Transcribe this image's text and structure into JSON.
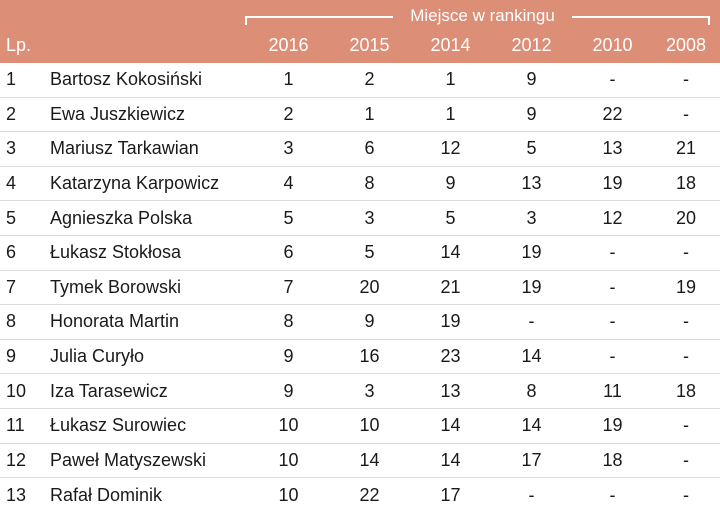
{
  "header": {
    "group_label": "Miejsce w rankingu",
    "lp_label": "Lp.",
    "years": [
      "2016",
      "2015",
      "2014",
      "2012",
      "2010",
      "2008"
    ]
  },
  "rows": [
    {
      "lp": "1",
      "name": "Bartosz Kokosiński",
      "v": [
        "1",
        "2",
        "1",
        "9",
        "-",
        "-"
      ]
    },
    {
      "lp": "2",
      "name": "Ewa Juszkiewicz",
      "v": [
        "2",
        "1",
        "1",
        "9",
        "22",
        "-"
      ]
    },
    {
      "lp": "3",
      "name": "Mariusz Tarkawian",
      "v": [
        "3",
        "6",
        "12",
        "5",
        "13",
        "21"
      ]
    },
    {
      "lp": "4",
      "name": "Katarzyna Karpowicz",
      "v": [
        "4",
        "8",
        "9",
        "13",
        "19",
        "18"
      ]
    },
    {
      "lp": "5",
      "name": "Agnieszka Polska",
      "v": [
        "5",
        "3",
        "5",
        "3",
        "12",
        "20"
      ]
    },
    {
      "lp": "6",
      "name": "Łukasz Stokłosa",
      "v": [
        "6",
        "5",
        "14",
        "19",
        "-",
        "-"
      ]
    },
    {
      "lp": "7",
      "name": "Tymek Borowski",
      "v": [
        "7",
        "20",
        "21",
        "19",
        "-",
        "19"
      ]
    },
    {
      "lp": "8",
      "name": "Honorata Martin",
      "v": [
        "8",
        "9",
        "19",
        "-",
        "-",
        "-"
      ]
    },
    {
      "lp": "9",
      "name": "Julia Curyło",
      "v": [
        "9",
        "16",
        "23",
        "14",
        "-",
        "-"
      ]
    },
    {
      "lp": "10",
      "name": "Iza Tarasewicz",
      "v": [
        "9",
        "3",
        "13",
        "8",
        "11",
        "18"
      ]
    },
    {
      "lp": "11",
      "name": "Łukasz Surowiec",
      "v": [
        "10",
        "10",
        "14",
        "14",
        "19",
        "-"
      ]
    },
    {
      "lp": "12",
      "name": "Paweł Matyszewski",
      "v": [
        "10",
        "14",
        "14",
        "17",
        "18",
        "-"
      ]
    },
    {
      "lp": "13",
      "name": "Rafał Dominik",
      "v": [
        "10",
        "22",
        "17",
        "-",
        "-",
        "-"
      ]
    }
  ],
  "colors": {
    "header_bg": "#dd8e76",
    "header_text": "#ffffff",
    "row_divider": "#dcdcdc"
  }
}
